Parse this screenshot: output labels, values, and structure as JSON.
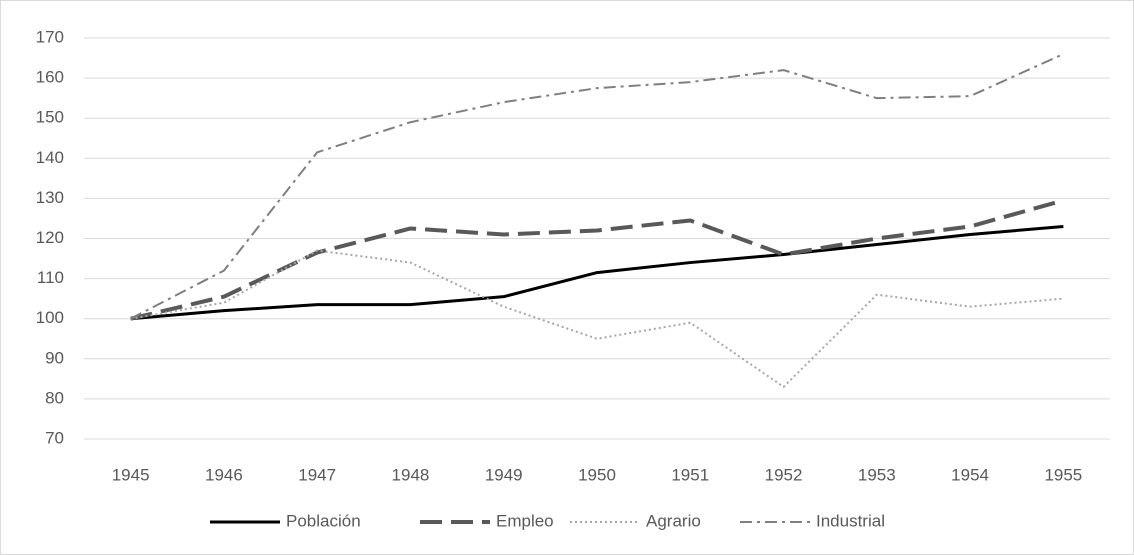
{
  "chart_data": {
    "type": "line",
    "categories": [
      "1945",
      "1946",
      "1947",
      "1948",
      "1949",
      "1950",
      "1951",
      "1952",
      "1953",
      "1954",
      "1955"
    ],
    "series": [
      {
        "name": "Población",
        "color": "#000000",
        "dash": "solid",
        "values": [
          100,
          102,
          103.5,
          103.5,
          105.5,
          111.5,
          114,
          116,
          118.5,
          121,
          123
        ]
      },
      {
        "name": "Empleo",
        "color": "#595959",
        "dash": "dash",
        "values": [
          100,
          105.5,
          116.5,
          122.5,
          121,
          122,
          124.5,
          116,
          120,
          123,
          129.5
        ]
      },
      {
        "name": "Agrario",
        "color": "#a6a6a6",
        "dash": "dot",
        "values": [
          100,
          104,
          117,
          114,
          103,
          95,
          99,
          83,
          106,
          103,
          105
        ]
      },
      {
        "name": "Industrial",
        "color": "#7f7f7f",
        "dash": "dashdot",
        "values": [
          100,
          112,
          141.5,
          149,
          154,
          157.5,
          159,
          162,
          155,
          155.5,
          166
        ]
      }
    ],
    "ylim": [
      70,
      170
    ],
    "yticks": [
      70,
      80,
      90,
      100,
      110,
      120,
      130,
      140,
      150,
      160,
      170
    ],
    "grid": true,
    "legend": "bottom"
  }
}
